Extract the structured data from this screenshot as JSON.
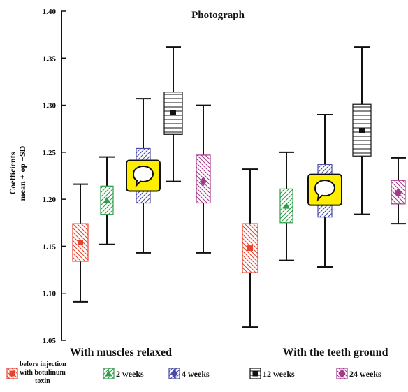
{
  "chart_data": {
    "type": "box",
    "title": "Photograph",
    "ylabel_lines": [
      "Coefficients",
      "mean + op +SD"
    ],
    "ylim": [
      1.05,
      1.4
    ],
    "yticks": [
      "1.05",
      "1.10",
      "1.15",
      "1.20",
      "1.25",
      "1.30",
      "1.35",
      "1.40"
    ],
    "groups": [
      "With muscles relaxed",
      "With the teeth ground"
    ],
    "series": [
      {
        "name_lines": [
          "before injection",
          "with botulinum",
          "toxin"
        ],
        "color": "#e8432e",
        "pattern": "diag-down",
        "marker": "square",
        "stats": [
          {
            "min": 1.091,
            "q1": 1.134,
            "mean": 1.154,
            "q3": 1.174,
            "max": 1.216
          },
          {
            "min": 1.064,
            "q1": 1.122,
            "mean": 1.148,
            "q3": 1.174,
            "max": 1.232
          }
        ]
      },
      {
        "name_lines": [
          "2 weeks"
        ],
        "color": "#2e9e4a",
        "pattern": "diag-up",
        "marker": "triangle",
        "stats": [
          {
            "min": 1.152,
            "q1": 1.184,
            "mean": 1.199,
            "q3": 1.214,
            "max": 1.245
          },
          {
            "min": 1.135,
            "q1": 1.175,
            "mean": 1.193,
            "q3": 1.211,
            "max": 1.25
          }
        ]
      },
      {
        "name_lines": [
          "4 weeks"
        ],
        "color": "#4a4aa6",
        "pattern": "diag-up",
        "marker": "diamond",
        "stats": [
          {
            "min": 1.143,
            "q1": 1.196,
            "mean": 1.225,
            "q3": 1.254,
            "max": 1.307
          },
          {
            "min": 1.128,
            "q1": 1.181,
            "mean": 1.21,
            "q3": 1.237,
            "max": 1.29
          }
        ]
      },
      {
        "name_lines": [
          "12 weeks"
        ],
        "color": "#111111",
        "pattern": "horiz",
        "marker": "square",
        "stats": [
          {
            "min": 1.219,
            "q1": 1.269,
            "mean": 1.292,
            "q3": 1.314,
            "max": 1.362
          },
          {
            "min": 1.184,
            "q1": 1.246,
            "mean": 1.273,
            "q3": 1.301,
            "max": 1.362
          }
        ]
      },
      {
        "name_lines": [
          "24 weeks"
        ],
        "color": "#a33a8a",
        "pattern": "diag-down",
        "marker": "diamond",
        "stats": [
          {
            "min": 1.143,
            "q1": 1.196,
            "mean": 1.219,
            "q3": 1.247,
            "max": 1.3
          },
          {
            "min": 1.174,
            "q1": 1.195,
            "mean": 1.207,
            "q3": 1.22,
            "max": 1.244
          }
        ]
      }
    ],
    "callout_icons": [
      {
        "name": "speech-bubble-icon",
        "group": 0,
        "series": 2
      },
      {
        "name": "speech-bubble-icon",
        "group": 1,
        "series": 2
      }
    ]
  }
}
